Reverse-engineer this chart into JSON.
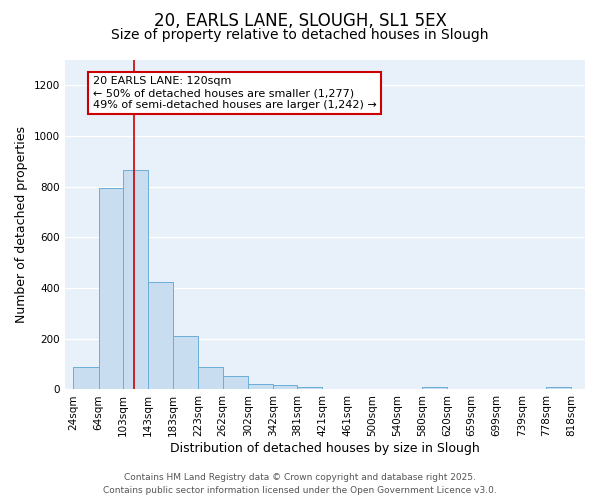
{
  "title_line1": "20, EARLS LANE, SLOUGH, SL1 5EX",
  "title_line2": "Size of property relative to detached houses in Slough",
  "xlabel": "Distribution of detached houses by size in Slough",
  "ylabel": "Number of detached properties",
  "bar_left_edges": [
    24,
    64,
    103,
    143,
    183,
    223,
    262,
    302,
    342,
    381,
    421,
    461,
    500,
    540,
    580,
    620,
    659,
    699,
    739,
    778
  ],
  "bar_widths": [
    40,
    39,
    40,
    40,
    40,
    39,
    40,
    40,
    39,
    40,
    40,
    39,
    40,
    40,
    40,
    39,
    40,
    40,
    39,
    40
  ],
  "bar_heights": [
    90,
    795,
    865,
    425,
    210,
    90,
    52,
    22,
    18,
    10,
    0,
    0,
    0,
    0,
    10,
    0,
    0,
    0,
    0,
    10
  ],
  "bar_color": "#c9ddf0",
  "bar_edgecolor": "#6aaed6",
  "xtick_labels": [
    "24sqm",
    "64sqm",
    "103sqm",
    "143sqm",
    "183sqm",
    "223sqm",
    "262sqm",
    "302sqm",
    "342sqm",
    "381sqm",
    "421sqm",
    "461sqm",
    "500sqm",
    "540sqm",
    "580sqm",
    "620sqm",
    "659sqm",
    "699sqm",
    "739sqm",
    "778sqm",
    "818sqm"
  ],
  "xtick_positions": [
    24,
    64,
    103,
    143,
    183,
    223,
    262,
    302,
    342,
    381,
    421,
    461,
    500,
    540,
    580,
    620,
    659,
    699,
    739,
    778,
    818
  ],
  "ylim": [
    0,
    1300
  ],
  "xlim": [
    10,
    840
  ],
  "red_line_x": 120,
  "annotation_line1": "20 EARLS LANE: 120sqm",
  "annotation_line2": "← 50% of detached houses are smaller (1,277)",
  "annotation_line3": "49% of semi-detached houses are larger (1,242) →",
  "annotation_box_color": "#ffffff",
  "annotation_border_color": "#cc0000",
  "red_line_color": "#cc0000",
  "fig_background_color": "#ffffff",
  "plot_background_color": "#e8f0fa",
  "grid_color": "#ffffff",
  "footer_line1": "Contains HM Land Registry data © Crown copyright and database right 2025.",
  "footer_line2": "Contains public sector information licensed under the Open Government Licence v3.0.",
  "title_fontsize": 12,
  "subtitle_fontsize": 10,
  "axis_label_fontsize": 9,
  "tick_fontsize": 7.5,
  "annotation_fontsize": 8,
  "footer_fontsize": 6.5,
  "yticks": [
    0,
    200,
    400,
    600,
    800,
    1000,
    1200
  ]
}
